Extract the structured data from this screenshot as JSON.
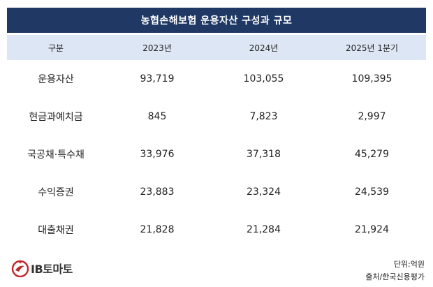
{
  "title": "농협손해보험 운용자산 구성과 규모",
  "headers": [
    "구분",
    "2023년",
    "2024년",
    "2025년 1분기"
  ],
  "rows": [
    [
      "운용자산",
      "93,719",
      "103,055",
      "109,395"
    ],
    [
      "현금과예치금",
      "845",
      "7,823",
      "2,997"
    ],
    [
      "국공채·특수채",
      "33,976",
      "37,318",
      "45,279"
    ],
    [
      "수익증권",
      "23,883",
      "23,324",
      "24,539"
    ],
    [
      "대출채권",
      "21,828",
      "21,284",
      "21,924"
    ]
  ],
  "logo": {
    "text": "IB토마토",
    "mark": "ib-tomato-logo-icon"
  },
  "unit_note": "단위:억원",
  "source_note": "출처/한국신용평가",
  "colors": {
    "title_bg": "#1f3864",
    "header_bg": "#dde6f4",
    "logo_red": "#c0262d"
  }
}
